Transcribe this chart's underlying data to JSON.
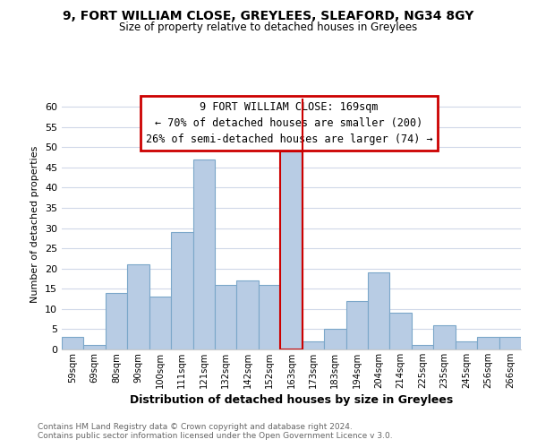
{
  "title1": "9, FORT WILLIAM CLOSE, GREYLEES, SLEAFORD, NG34 8GY",
  "title2": "Size of property relative to detached houses in Greylees",
  "xlabel": "Distribution of detached houses by size in Greylees",
  "ylabel": "Number of detached properties",
  "bar_labels": [
    "59sqm",
    "69sqm",
    "80sqm",
    "90sqm",
    "100sqm",
    "111sqm",
    "121sqm",
    "132sqm",
    "142sqm",
    "152sqm",
    "163sqm",
    "173sqm",
    "183sqm",
    "194sqm",
    "204sqm",
    "214sqm",
    "225sqm",
    "235sqm",
    "245sqm",
    "256sqm",
    "266sqm"
  ],
  "bar_values": [
    3,
    1,
    14,
    21,
    13,
    29,
    47,
    16,
    17,
    16,
    49,
    2,
    5,
    12,
    19,
    9,
    1,
    6,
    2,
    3,
    3
  ],
  "bar_color": "#b8cce4",
  "bar_edge_color": "#7ba7c9",
  "highlight_bar_index": 10,
  "vline_color": "#cc0000",
  "ylim": [
    0,
    62
  ],
  "yticks": [
    0,
    5,
    10,
    15,
    20,
    25,
    30,
    35,
    40,
    45,
    50,
    55,
    60
  ],
  "annotation_title": "9 FORT WILLIAM CLOSE: 169sqm",
  "annotation_line1": "← 70% of detached houses are smaller (200)",
  "annotation_line2": "26% of semi-detached houses are larger (74) →",
  "footer1": "Contains HM Land Registry data © Crown copyright and database right 2024.",
  "footer2": "Contains public sector information licensed under the Open Government Licence v 3.0.",
  "background_color": "#ffffff",
  "grid_color": "#d0d8e8"
}
